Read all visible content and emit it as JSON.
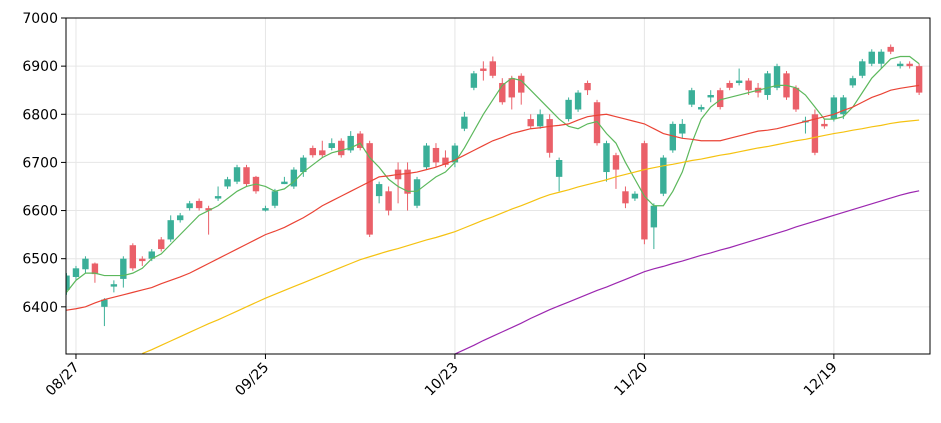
{
  "chart_data": {
    "type": "candlestick",
    "categories": [
      null,
      "08/27",
      null,
      null,
      null,
      null,
      null,
      null,
      null,
      null,
      null,
      null,
      null,
      null,
      null,
      null,
      null,
      null,
      null,
      null,
      null,
      "09/25",
      null,
      null,
      null,
      null,
      null,
      null,
      null,
      null,
      null,
      null,
      null,
      null,
      null,
      null,
      null,
      null,
      null,
      null,
      null,
      "10/23",
      null,
      null,
      null,
      null,
      null,
      null,
      null,
      null,
      null,
      null,
      null,
      null,
      null,
      null,
      null,
      null,
      null,
      null,
      null,
      "11/20",
      null,
      null,
      null,
      null,
      null,
      null,
      null,
      null,
      null,
      null,
      null,
      null,
      null,
      null,
      null,
      null,
      null,
      null,
      null,
      "12/19",
      null,
      null,
      null,
      null,
      null,
      null,
      null,
      null,
      null
    ],
    "open": [
      6435,
      6462,
      6478,
      6490,
      6400,
      6442,
      6458,
      6528,
      6500,
      6500,
      6540,
      6540,
      6580,
      6605,
      6620,
      6605,
      6625,
      6650,
      6660,
      6690,
      6670,
      6600,
      6610,
      6655,
      6650,
      6680,
      6730,
      6725,
      6730,
      6745,
      6725,
      6760,
      6740,
      6630,
      6640,
      6685,
      6685,
      6610,
      6690,
      6730,
      6710,
      6700,
      6770,
      6855,
      6895,
      6910,
      6865,
      6875,
      6880,
      6790,
      6775,
      6790,
      6670,
      6790,
      6810,
      6865,
      6825,
      6680,
      6715,
      6640,
      6625,
      6740,
      6565,
      6635,
      6725,
      6760,
      6820,
      6810,
      6835,
      6850,
      6865,
      6865,
      6870,
      6855,
      6840,
      6855,
      6885,
      6855,
      6783,
      6800,
      6780,
      6790,
      6800,
      6860,
      6880,
      6905,
      6905,
      6940,
      6900,
      6905,
      6900
    ],
    "high": [
      6470,
      6485,
      6505,
      6492,
      6418,
      6455,
      6505,
      6532,
      6505,
      6520,
      6545,
      6590,
      6595,
      6620,
      6625,
      6610,
      6650,
      6670,
      6695,
      6695,
      6672,
      6610,
      6645,
      6670,
      6690,
      6715,
      6735,
      6745,
      6750,
      6750,
      6765,
      6765,
      6745,
      6660,
      6650,
      6700,
      6700,
      6670,
      6740,
      6740,
      6725,
      6740,
      6805,
      6890,
      6910,
      6920,
      6875,
      6880,
      6885,
      6800,
      6810,
      6800,
      6710,
      6835,
      6850,
      6870,
      6830,
      6745,
      6720,
      6650,
      6640,
      6745,
      6615,
      6715,
      6785,
      6790,
      6855,
      6820,
      6850,
      6855,
      6870,
      6895,
      6875,
      6865,
      6890,
      6905,
      6890,
      6860,
      6795,
      6810,
      6790,
      6840,
      6840,
      6880,
      6915,
      6935,
      6935,
      6945,
      6910,
      6910,
      6905
    ],
    "low": [
      6425,
      6455,
      6470,
      6450,
      6360,
      6430,
      6440,
      6475,
      6485,
      6495,
      6515,
      6535,
      6575,
      6600,
      6600,
      6550,
      6620,
      6645,
      6655,
      6650,
      6635,
      6598,
      6605,
      6655,
      6645,
      6670,
      6710,
      6710,
      6725,
      6710,
      6720,
      6725,
      6545,
      6615,
      6590,
      6615,
      6600,
      6605,
      6685,
      6690,
      6690,
      6690,
      6765,
      6850,
      6870,
      6875,
      6820,
      6810,
      6820,
      6770,
      6770,
      6710,
      6640,
      6785,
      6805,
      6840,
      6735,
      6660,
      6645,
      6605,
      6620,
      6530,
      6520,
      6630,
      6720,
      6750,
      6815,
      6805,
      6825,
      6810,
      6850,
      6860,
      6840,
      6835,
      6830,
      6850,
      6830,
      6805,
      6760,
      6715,
      6770,
      6785,
      6790,
      6855,
      6875,
      6900,
      6895,
      6925,
      6895,
      6895,
      6840
    ],
    "close": [
      6465,
      6480,
      6500,
      6468,
      6415,
      6447,
      6500,
      6480,
      6495,
      6515,
      6520,
      6580,
      6590,
      6615,
      6605,
      6600,
      6630,
      6665,
      6690,
      6655,
      6640,
      6605,
      6640,
      6660,
      6685,
      6710,
      6715,
      6715,
      6740,
      6715,
      6755,
      6730,
      6550,
      6655,
      6600,
      6665,
      6635,
      6665,
      6735,
      6700,
      6695,
      6735,
      6795,
      6885,
      6890,
      6880,
      6825,
      6835,
      6845,
      6775,
      6800,
      6720,
      6705,
      6830,
      6845,
      6850,
      6740,
      6740,
      6685,
      6615,
      6635,
      6540,
      6610,
      6710,
      6780,
      6780,
      6850,
      6815,
      6840,
      6815,
      6855,
      6870,
      6850,
      6845,
      6885,
      6900,
      6835,
      6810,
      6787,
      6720,
      6775,
      6835,
      6835,
      6875,
      6910,
      6930,
      6930,
      6930,
      6905,
      6900,
      6845
    ],
    "up_color": "#3aaf98",
    "down_color": "#ea6069",
    "lines": [
      {
        "color": "#5cb85c",
        "values": [
          6430,
          6455,
          6470,
          6470,
          6465,
          6465,
          6465,
          6470,
          6480,
          6500,
          6510,
          6530,
          6550,
          6570,
          6590,
          6600,
          6610,
          6625,
          6640,
          6650,
          6655,
          6650,
          6640,
          6645,
          6660,
          6680,
          6695,
          6710,
          6720,
          6725,
          6730,
          6740,
          6710,
          6690,
          6665,
          6650,
          6640,
          6640,
          6655,
          6670,
          6680,
          6700,
          6730,
          6765,
          6800,
          6830,
          6860,
          6875,
          6870,
          6850,
          6830,
          6810,
          6790,
          6775,
          6770,
          6780,
          6785,
          6760,
          6740,
          6700,
          6665,
          6630,
          6610,
          6610,
          6640,
          6680,
          6740,
          6790,
          6815,
          6830,
          6835,
          6840,
          6845,
          6850,
          6855,
          6860,
          6860,
          6855,
          6840,
          6815,
          6790,
          6790,
          6795,
          6815,
          6845,
          6875,
          6895,
          6915,
          6920,
          6920,
          6905
        ]
      },
      {
        "color": "#ea4335",
        "values": [
          6393,
          6396,
          6400,
          6408,
          6415,
          6420,
          6425,
          6430,
          6435,
          6440,
          6448,
          6455,
          6462,
          6470,
          6480,
          6490,
          6500,
          6510,
          6520,
          6530,
          6540,
          6550,
          6557,
          6565,
          6575,
          6585,
          6597,
          6610,
          6620,
          6630,
          6640,
          6650,
          6660,
          6670,
          6672,
          6675,
          6677,
          6680,
          6685,
          6690,
          6697,
          6705,
          6715,
          6725,
          6735,
          6745,
          6752,
          6760,
          6765,
          6770,
          6772,
          6775,
          6777,
          6780,
          6788,
          6795,
          6798,
          6800,
          6795,
          6790,
          6785,
          6780,
          6770,
          6760,
          6755,
          6750,
          6748,
          6745,
          6745,
          6745,
          6750,
          6755,
          6760,
          6765,
          6767,
          6770,
          6775,
          6780,
          6785,
          6790,
          6795,
          6800,
          6808,
          6815,
          6825,
          6835,
          6842,
          6850,
          6854,
          6857,
          6860
        ]
      },
      {
        "color": "#f5c211",
        "values": [
          null,
          null,
          null,
          null,
          null,
          null,
          null,
          null,
          6303,
          6311,
          6320,
          6329,
          6338,
          6347,
          6356,
          6365,
          6373,
          6382,
          6391,
          6400,
          6409,
          6418,
          6426,
          6434,
          6442,
          6450,
          6458,
          6466,
          6474,
          6482,
          6490,
          6498,
          6504,
          6510,
          6516,
          6521,
          6527,
          6533,
          6539,
          6544,
          6550,
          6556,
          6564,
          6572,
          6580,
          6587,
          6595,
          6603,
          6610,
          6618,
          6626,
          6633,
          6638,
          6643,
          6649,
          6654,
          6659,
          6664,
          6670,
          6675,
          6680,
          6685,
          6689,
          6693,
          6696,
          6700,
          6704,
          6707,
          6711,
          6715,
          6718,
          6722,
          6726,
          6730,
          6733,
          6737,
          6741,
          6745,
          6748,
          6752,
          6756,
          6760,
          6763,
          6767,
          6770,
          6774,
          6777,
          6781,
          6784,
          6786,
          6788
        ]
      },
      {
        "color": "#9c27b0",
        "values": [
          null,
          null,
          null,
          null,
          null,
          null,
          null,
          null,
          null,
          null,
          null,
          null,
          null,
          null,
          null,
          null,
          null,
          null,
          null,
          null,
          null,
          null,
          null,
          null,
          null,
          null,
          null,
          null,
          null,
          null,
          null,
          null,
          null,
          null,
          null,
          null,
          null,
          null,
          null,
          null,
          null,
          6302,
          6311,
          6320,
          6330,
          6339,
          6348,
          6357,
          6366,
          6376,
          6385,
          6394,
          6402,
          6410,
          6418,
          6426,
          6434,
          6441,
          6449,
          6457,
          6465,
          6473,
          6479,
          6484,
          6490,
          6495,
          6501,
          6507,
          6512,
          6518,
          6523,
          6529,
          6535,
          6541,
          6547,
          6553,
          6559,
          6566,
          6572,
          6578,
          6584,
          6590,
          6596,
          6602,
          6608,
          6614,
          6620,
          6626,
          6632,
          6637,
          6641
        ]
      }
    ],
    "ylim": [
      6302,
      7000
    ],
    "yticks": [
      6400,
      6500,
      6600,
      6700,
      6800,
      6900,
      7000
    ],
    "grid": true
  }
}
